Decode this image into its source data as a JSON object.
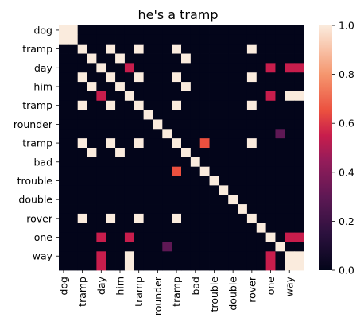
{
  "chart_data": {
    "type": "heatmap",
    "title": "he's a tramp",
    "xlabel": "",
    "ylabel": "",
    "row_labels": [
      "dog",
      "",
      "tramp",
      "",
      "day",
      "",
      "him",
      "",
      "tramp",
      "",
      "rounder",
      "",
      "tramp",
      "",
      "bad",
      "",
      "trouble",
      "",
      "double",
      "",
      "rover",
      "",
      "one",
      "",
      "way",
      ""
    ],
    "col_labels": [
      "dog",
      "",
      "tramp",
      "",
      "day",
      "",
      "him",
      "",
      "tramp",
      "",
      "rounder",
      "",
      "tramp",
      "",
      "bad",
      "",
      "trouble",
      "",
      "double",
      "",
      "rover",
      "",
      "one",
      "",
      "way",
      ""
    ],
    "values": [
      [
        1,
        1,
        0,
        0,
        0,
        0,
        0,
        0,
        0,
        0,
        0,
        0,
        0,
        0,
        0,
        0,
        0,
        0,
        0,
        0,
        0,
        0,
        0,
        0,
        0,
        0
      ],
      [
        1,
        1,
        0,
        0,
        0,
        0,
        0,
        0,
        0,
        0,
        0,
        0,
        0,
        0,
        0,
        0,
        0,
        0,
        0,
        0,
        0,
        0,
        0,
        0,
        0,
        0
      ],
      [
        0,
        0,
        1,
        0,
        0,
        1,
        0,
        0,
        1,
        0,
        0,
        0,
        1,
        0,
        0,
        0,
        0,
        0,
        0,
        0,
        1,
        0,
        0,
        0,
        0,
        0
      ],
      [
        0,
        0,
        0,
        1,
        0,
        0,
        1,
        0,
        0,
        0,
        0,
        0,
        0,
        1,
        0,
        0,
        0,
        0,
        0,
        0,
        0,
        0,
        0,
        0,
        0,
        0
      ],
      [
        0,
        0,
        0,
        0,
        1,
        0,
        0,
        0.55,
        0,
        0,
        0,
        0,
        0,
        0,
        0,
        0,
        0,
        0,
        0,
        0,
        0,
        0,
        0.55,
        0,
        0.55,
        0.55
      ],
      [
        0,
        0,
        1,
        0,
        0,
        1,
        0,
        0,
        1,
        0,
        0,
        0,
        1,
        0,
        0,
        0,
        0,
        0,
        0,
        0,
        1,
        0,
        0,
        0,
        0,
        0
      ],
      [
        0,
        0,
        0,
        1,
        0,
        0,
        1,
        0,
        0,
        0,
        0,
        0,
        0,
        1,
        0,
        0,
        0,
        0,
        0,
        0,
        0,
        0,
        0,
        0,
        0,
        0
      ],
      [
        0,
        0,
        0,
        0,
        0.55,
        0,
        0,
        1,
        0,
        0,
        0,
        0,
        0,
        0,
        0,
        0,
        0,
        0,
        0,
        0,
        0,
        0,
        0.55,
        0,
        1,
        1
      ],
      [
        0,
        0,
        1,
        0,
        0,
        1,
        0,
        0,
        1,
        0,
        0,
        0,
        1,
        0,
        0,
        0,
        0,
        0,
        0,
        0,
        1,
        0,
        0,
        0,
        0,
        0
      ],
      [
        0,
        0,
        0,
        0,
        0,
        0,
        0,
        0,
        0,
        1,
        0,
        0,
        0,
        0,
        0,
        0,
        0,
        0,
        0,
        0,
        0,
        0,
        0,
        0,
        0,
        0
      ],
      [
        0,
        0,
        0,
        0,
        0,
        0,
        0,
        0,
        0,
        0,
        1,
        0,
        0,
        0,
        0,
        0,
        0,
        0,
        0,
        0,
        0,
        0,
        0,
        0,
        0,
        0
      ],
      [
        0,
        0,
        0,
        0,
        0,
        0,
        0,
        0,
        0,
        0,
        0,
        1,
        0,
        0,
        0,
        0,
        0,
        0,
        0,
        0,
        0,
        0,
        0,
        0.3,
        0,
        0
      ],
      [
        0,
        0,
        1,
        0,
        0,
        1,
        0,
        0,
        1,
        0,
        0,
        0,
        1,
        0,
        0,
        0.65,
        0,
        0,
        0,
        0,
        1,
        0,
        0,
        0,
        0,
        0
      ],
      [
        0,
        0,
        0,
        1,
        0,
        0,
        1,
        0,
        0,
        0,
        0,
        0,
        0,
        1,
        0,
        0,
        0,
        0,
        0,
        0,
        0,
        0,
        0,
        0,
        0,
        0
      ],
      [
        0,
        0,
        0,
        0,
        0,
        0,
        0,
        0,
        0,
        0,
        0,
        0,
        0,
        0,
        1,
        0,
        0,
        0,
        0,
        0,
        0,
        0,
        0,
        0,
        0,
        0
      ],
      [
        0,
        0,
        0,
        0,
        0,
        0,
        0,
        0,
        0,
        0,
        0,
        0,
        0.65,
        0,
        0,
        1,
        0,
        0,
        0,
        0,
        0,
        0,
        0,
        0,
        0,
        0
      ],
      [
        0,
        0,
        0,
        0,
        0,
        0,
        0,
        0,
        0,
        0,
        0,
        0,
        0,
        0,
        0,
        0,
        1,
        0,
        0,
        0,
        0,
        0,
        0,
        0,
        0,
        0
      ],
      [
        0,
        0,
        0,
        0,
        0,
        0,
        0,
        0,
        0,
        0,
        0,
        0,
        0,
        0,
        0,
        0,
        0,
        1,
        0,
        0,
        0,
        0,
        0,
        0,
        0,
        0
      ],
      [
        0,
        0,
        0,
        0,
        0,
        0,
        0,
        0,
        0,
        0,
        0,
        0,
        0,
        0,
        0,
        0,
        0,
        0,
        1,
        0,
        0,
        0,
        0,
        0,
        0,
        0
      ],
      [
        0,
        0,
        0,
        0,
        0,
        0,
        0,
        0,
        0,
        0,
        0,
        0,
        0,
        0,
        0,
        0,
        0,
        0,
        0,
        1,
        0,
        0,
        0,
        0,
        0,
        0
      ],
      [
        0,
        0,
        1,
        0,
        0,
        1,
        0,
        0,
        1,
        0,
        0,
        0,
        1,
        0,
        0,
        0,
        0,
        0,
        0,
        0,
        1,
        0,
        0,
        0,
        0,
        0
      ],
      [
        0,
        0,
        0,
        0,
        0,
        0,
        0,
        0,
        0,
        0,
        0,
        0,
        0,
        0,
        0,
        0,
        0,
        0,
        0,
        0,
        0,
        1,
        0,
        0,
        0,
        0
      ],
      [
        0,
        0,
        0,
        0,
        0.55,
        0,
        0,
        0.55,
        0,
        0,
        0,
        0,
        0,
        0,
        0,
        0,
        0,
        0,
        0,
        0,
        0,
        0,
        1,
        0,
        0.55,
        0.55
      ],
      [
        0,
        0,
        0,
        0,
        0,
        0,
        0,
        0,
        0,
        0,
        0,
        0.3,
        0,
        0,
        0,
        0,
        0,
        0,
        0,
        0,
        0,
        0,
        0,
        1,
        0,
        0
      ],
      [
        0,
        0,
        0,
        0,
        0.55,
        0,
        0,
        1,
        0,
        0,
        0,
        0,
        0,
        0,
        0,
        0,
        0,
        0,
        0,
        0,
        0,
        0,
        0.55,
        0,
        1,
        1
      ],
      [
        0,
        0,
        0,
        0,
        0.55,
        0,
        0,
        1,
        0,
        0,
        0,
        0,
        0,
        0,
        0,
        0,
        0,
        0,
        0,
        0,
        0,
        0,
        0.55,
        0,
        1,
        1
      ]
    ],
    "vmin": 0,
    "vmax": 1,
    "colorbar": {
      "ticks": [
        0.0,
        0.2,
        0.4,
        0.6,
        0.8,
        1.0
      ],
      "tick_labels": [
        "0.0",
        "0.2",
        "0.4",
        "0.6",
        "0.8",
        "1.0"
      ]
    },
    "colormap": "rocket",
    "grid": false,
    "legend": "right (colorbar)"
  }
}
